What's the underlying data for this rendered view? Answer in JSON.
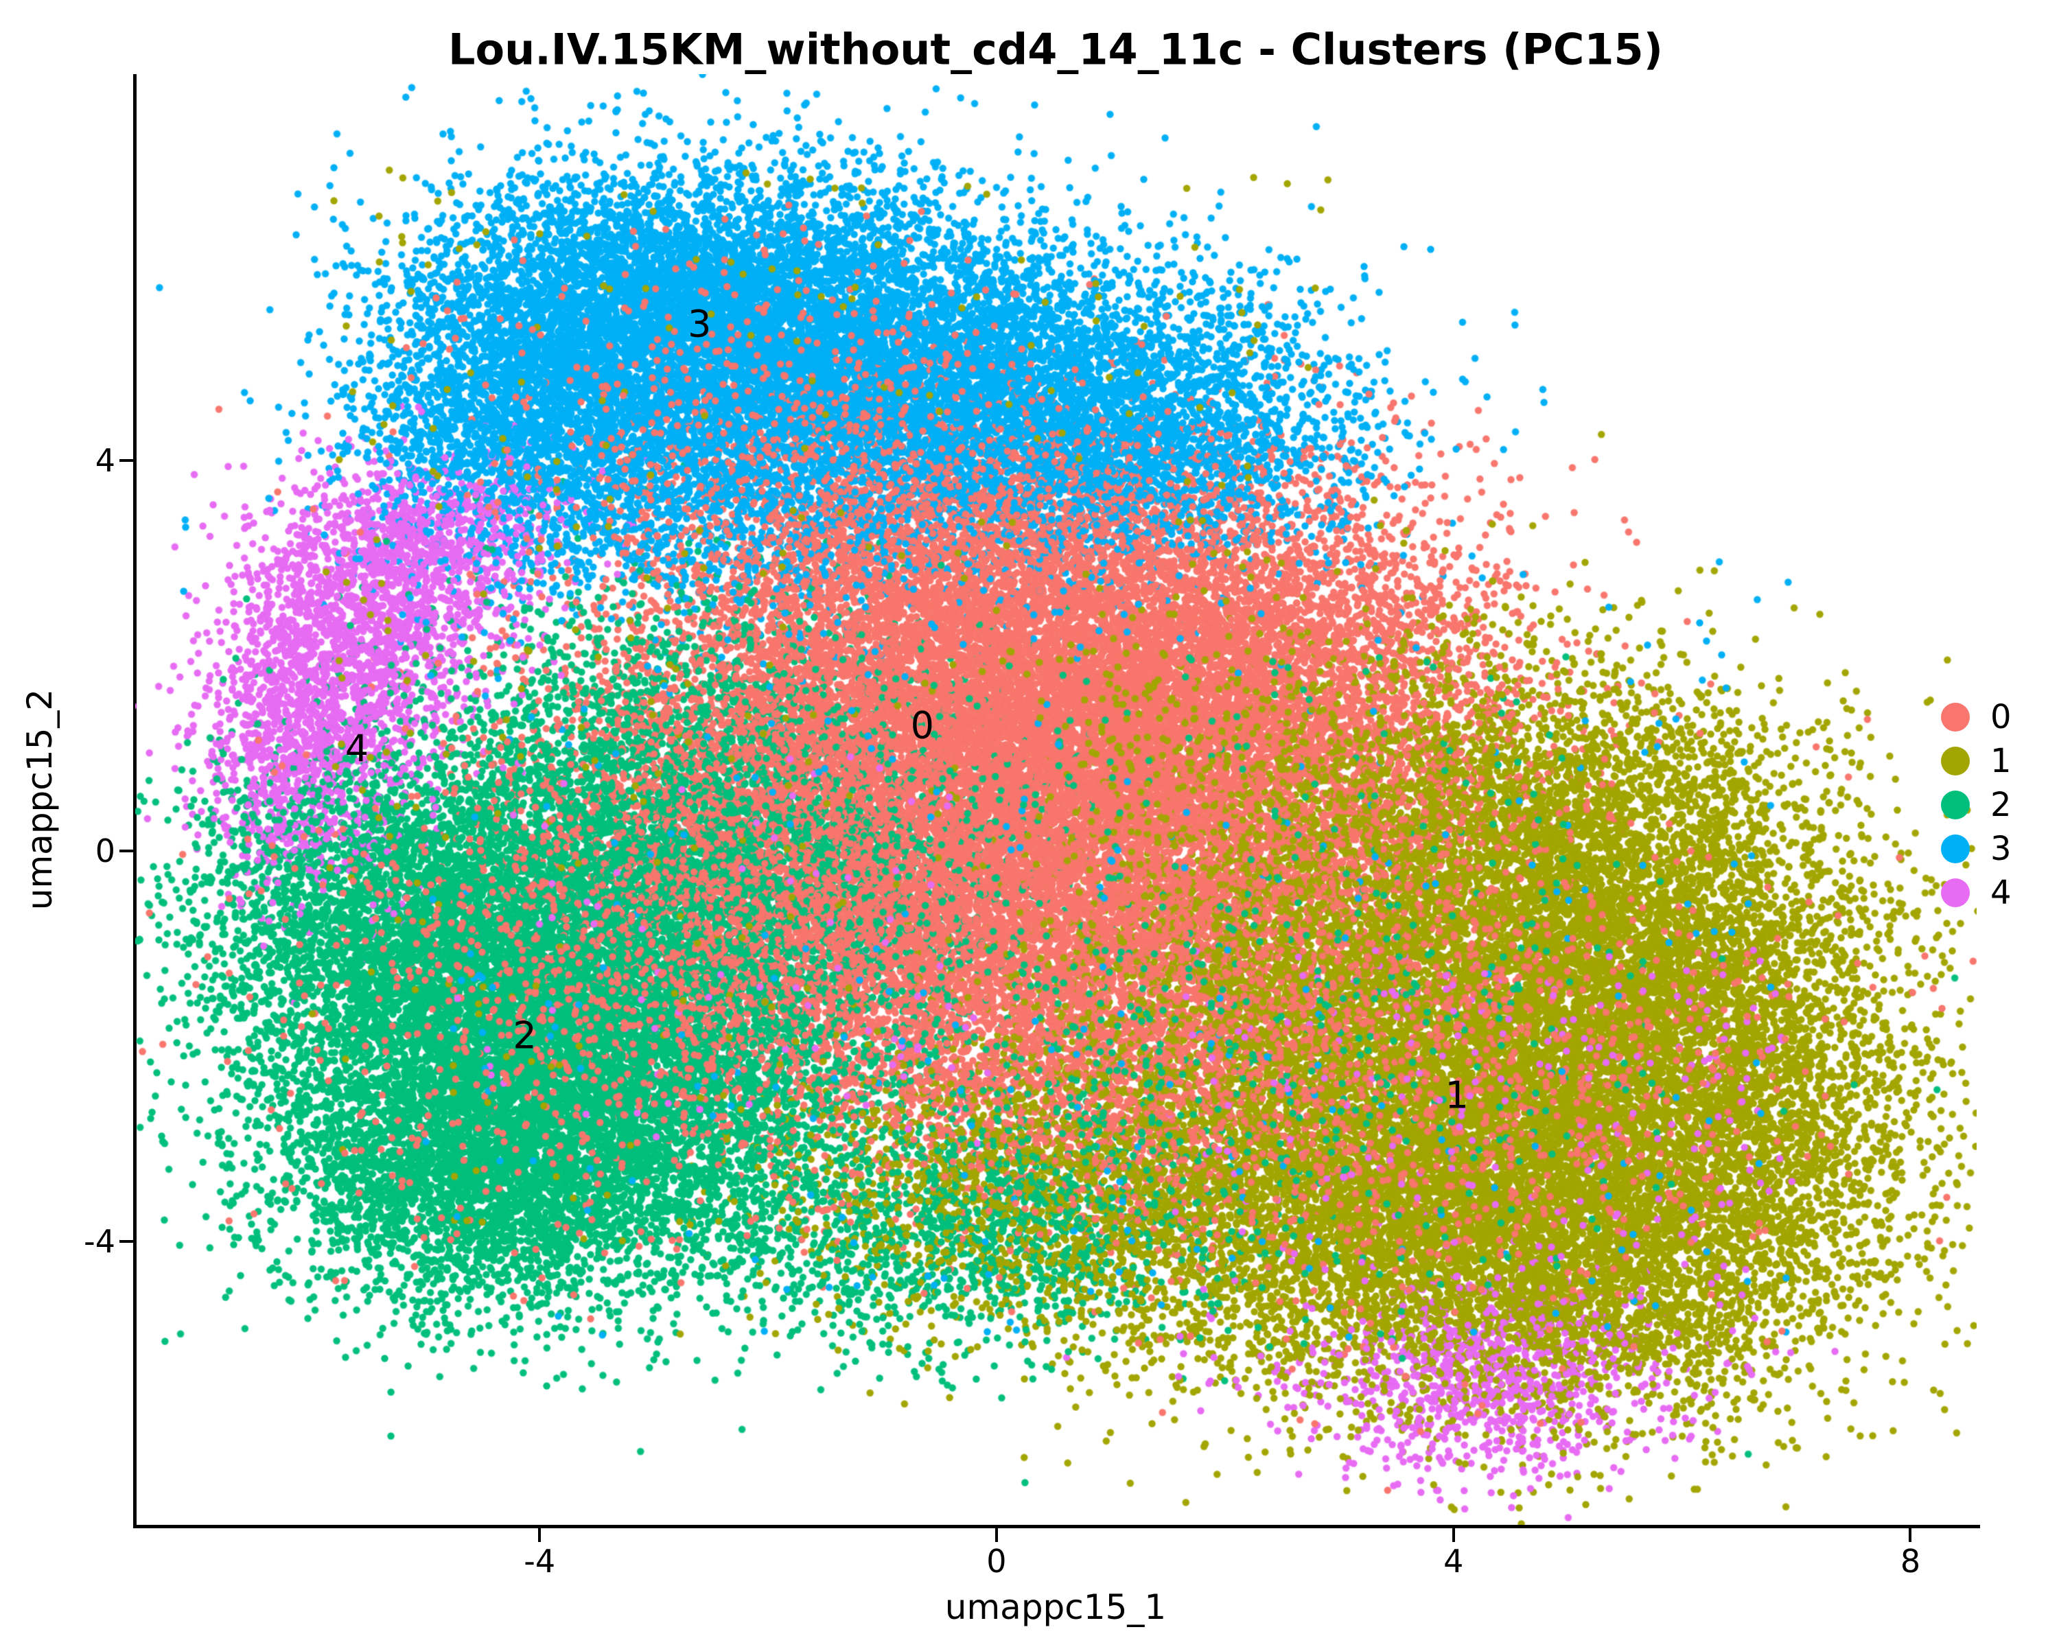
{
  "chart_data": {
    "type": "scatter",
    "title": "Lou.IV.15KM_without_cd4_14_11c - Clusters (PC15)",
    "xlabel": "umappc15_1",
    "ylabel": "umappc15_2",
    "xlim": [
      -7.54,
      8.58
    ],
    "ylim": [
      -6.9,
      7.96
    ],
    "x_ticks": [
      -4,
      0,
      4,
      8
    ],
    "y_ticks": [
      4,
      0,
      -4
    ],
    "grid": false,
    "legend_position": "right-center",
    "point_radius_px": 5.2,
    "seed": 1337,
    "clusters": [
      {
        "id": "0",
        "label": "0",
        "color": "#F8766D",
        "label_pos": [
          -0.65,
          1.29
        ],
        "gaussians": [
          [
            0.3,
            2.0,
            1.5,
            1.1,
            6000
          ],
          [
            -0.8,
            1.0,
            1.5,
            1.1,
            5000
          ],
          [
            1.6,
            0.8,
            1.4,
            1.1,
            4500
          ],
          [
            2.6,
            2.0,
            1.0,
            0.9,
            1800
          ],
          [
            0.2,
            -0.6,
            1.5,
            1.0,
            4000
          ],
          [
            -1.8,
            -0.6,
            1.2,
            1.0,
            2500
          ],
          [
            0.8,
            -2.0,
            1.3,
            0.9,
            2500
          ],
          [
            -0.5,
            3.4,
            1.4,
            0.7,
            1500
          ]
        ],
        "overlay_gaussians": [
          [
            3.6,
            -2.0,
            1.7,
            1.4,
            1200
          ],
          [
            -3.5,
            -1.5,
            1.5,
            1.2,
            800
          ],
          [
            -2.0,
            4.6,
            1.4,
            0.8,
            400
          ]
        ],
        "overlay_uniform": []
      },
      {
        "id": "1",
        "label": "1",
        "color": "#A3A500",
        "label_pos": [
          4.03,
          -2.5
        ],
        "gaussians": [
          [
            4.4,
            -2.3,
            1.4,
            1.3,
            6000
          ],
          [
            5.6,
            -1.2,
            1.1,
            1.1,
            3500
          ],
          [
            3.2,
            -3.6,
            1.3,
            1.0,
            3500
          ],
          [
            5.1,
            -4.2,
            1.2,
            0.8,
            3000
          ],
          [
            2.6,
            -1.2,
            1.1,
            1.0,
            2500
          ],
          [
            4.6,
            0.3,
            1.2,
            0.9,
            2500
          ],
          [
            6.6,
            -2.8,
            0.8,
            0.9,
            1500
          ],
          [
            0.5,
            -3.4,
            1.2,
            0.8,
            1800
          ]
        ],
        "overlay_gaussians": [
          [
            2.8,
            0.8,
            1.2,
            1.0,
            600
          ]
        ],
        "overlay_uniform": [
          [
            -6.0,
            3.0,
            -4.0,
            7.0,
            350
          ]
        ]
      },
      {
        "id": "2",
        "label": "2",
        "color": "#00BF7D",
        "label_pos": [
          -4.13,
          -1.89
        ],
        "gaussians": [
          [
            -4.4,
            -1.7,
            1.1,
            1.1,
            5000
          ],
          [
            -3.3,
            -2.7,
            1.1,
            0.9,
            3500
          ],
          [
            -5.3,
            -0.6,
            0.9,
            0.9,
            2500
          ],
          [
            -2.7,
            -1.0,
            1.1,
            1.0,
            2500
          ],
          [
            -3.0,
            0.6,
            1.2,
            1.0,
            2500
          ],
          [
            -4.6,
            -3.4,
            0.9,
            0.65,
            2000
          ],
          [
            -0.2,
            -3.9,
            1.1,
            0.6,
            1200
          ],
          [
            -1.5,
            0.2,
            1.0,
            0.9,
            1000
          ]
        ],
        "overlay_gaussians": [
          [
            1.5,
            -2.5,
            2.2,
            1.2,
            500
          ]
        ],
        "overlay_uniform": [
          [
            -1.0,
            5.0,
            -3.0,
            2.0,
            200
          ]
        ]
      },
      {
        "id": "3",
        "label": "3",
        "color": "#00B0F6",
        "label_pos": [
          -2.6,
          5.4
        ],
        "gaussians": [
          [
            -2.8,
            5.6,
            1.1,
            0.75,
            4500
          ],
          [
            -1.2,
            5.1,
            1.2,
            0.8,
            4000
          ],
          [
            0.6,
            4.6,
            1.2,
            0.75,
            3000
          ],
          [
            -4.2,
            4.6,
            0.7,
            0.8,
            2000
          ],
          [
            -2.2,
            4.0,
            1.4,
            0.8,
            2500
          ],
          [
            1.5,
            3.9,
            0.9,
            0.6,
            1000
          ]
        ],
        "overlay_gaussians": [],
        "overlay_uniform": [
          [
            -5.0,
            7.0,
            -5.0,
            3.0,
            300
          ]
        ]
      },
      {
        "id": "4",
        "label": "4",
        "color": "#E76BF3",
        "label_pos": [
          -5.6,
          1.05
        ],
        "gaussians": [
          [
            -5.7,
            2.0,
            0.55,
            0.8,
            1500
          ],
          [
            -6.1,
            0.9,
            0.45,
            0.7,
            700
          ],
          [
            -5.1,
            2.9,
            0.5,
            0.5,
            600
          ],
          [
            -4.7,
            3.3,
            0.6,
            0.4,
            350
          ],
          [
            4.3,
            -5.4,
            0.75,
            0.5,
            900
          ]
        ],
        "overlay_gaussians": [],
        "overlay_uniform": [
          [
            1.5,
            7.0,
            -5.5,
            -1.0,
            280
          ],
          [
            -5.0,
            0.0,
            -3.0,
            1.0,
            80
          ]
        ]
      }
    ]
  },
  "legend": {
    "items": [
      {
        "label": "0",
        "color": "#F8766D"
      },
      {
        "label": "1",
        "color": "#A3A500"
      },
      {
        "label": "2",
        "color": "#00BF7D"
      },
      {
        "label": "3",
        "color": "#00B0F6"
      },
      {
        "label": "4",
        "color": "#E76BF3"
      }
    ]
  }
}
